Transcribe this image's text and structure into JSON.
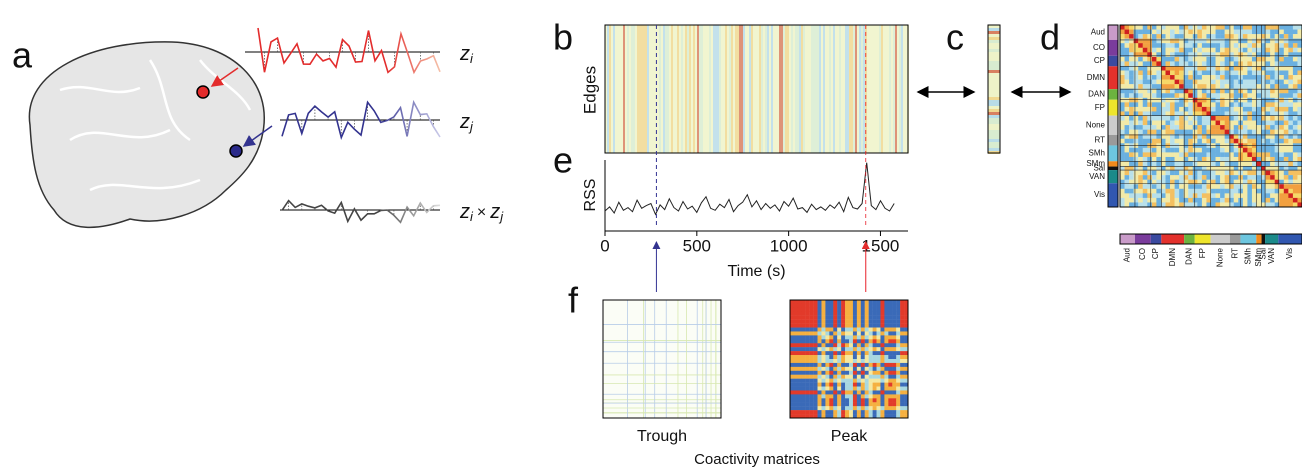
{
  "panel_labels": [
    "a",
    "b",
    "c",
    "d",
    "e",
    "f"
  ],
  "panel_a": {
    "signals": [
      {
        "symbol": "z",
        "subscript": "i"
      },
      {
        "symbol": "z",
        "subscript": "j"
      }
    ],
    "operator": "×"
  },
  "panel_b": {
    "ylabel": "Edges"
  },
  "rss_chart": {
    "type": "line",
    "ylabel": "RSS",
    "xlabel": "Time (s)",
    "color": "#222",
    "xlim": [
      0,
      1650
    ],
    "xticks": [
      0,
      500,
      1000,
      1500
    ],
    "ylim": [
      0,
      10
    ],
    "x": [
      0,
      25,
      50,
      75,
      100,
      125,
      150,
      175,
      200,
      225,
      250,
      275,
      300,
      325,
      350,
      375,
      400,
      425,
      450,
      475,
      500,
      525,
      550,
      575,
      600,
      625,
      650,
      675,
      700,
      725,
      750,
      775,
      800,
      825,
      850,
      875,
      900,
      925,
      950,
      975,
      1000,
      1025,
      1050,
      1075,
      1100,
      1125,
      1150,
      1175,
      1200,
      1225,
      1250,
      1275,
      1300,
      1325,
      1350,
      1375,
      1400,
      1425,
      1450,
      1475,
      1500,
      1525,
      1550,
      1575
    ],
    "values": [
      2.5,
      3.1,
      2.2,
      3.8,
      2.6,
      3.0,
      2.4,
      4.1,
      2.9,
      3.3,
      3.6,
      2.0,
      3.4,
      2.7,
      4.3,
      3.0,
      2.5,
      3.9,
      2.8,
      3.2,
      2.3,
      3.7,
      4.6,
      2.9,
      2.6,
      3.5,
      3.0,
      4.2,
      2.4,
      3.3,
      3.8,
      4.9,
      3.1,
      4.0,
      2.7,
      3.6,
      2.9,
      3.4,
      2.5,
      3.9,
      3.2,
      4.4,
      2.8,
      3.0,
      2.3,
      3.5,
      2.7,
      3.1,
      2.6,
      3.4,
      2.9,
      3.8,
      2.4,
      4.5,
      3.0,
      2.8,
      3.6,
      9.6,
      3.3,
      2.7,
      4.0,
      2.9,
      2.5,
      3.6
    ],
    "trough_x": 280,
    "peak_x": 1420
  },
  "panel_f": {
    "matrices": [
      {
        "label": "Trough",
        "color": "#343494"
      },
      {
        "label": "Peak",
        "color": "#e8202a"
      }
    ],
    "caption": "Coactivity matrices"
  },
  "panel_d": {
    "networks": [
      {
        "name": "Aud",
        "color": "#c99bc9"
      },
      {
        "name": "CO",
        "color": "#7a3c9c"
      },
      {
        "name": "CP",
        "color": "#3b4aa0"
      },
      {
        "name": "DMN",
        "color": "#e3312c"
      },
      {
        "name": "DAN",
        "color": "#6cb33f"
      },
      {
        "name": "FP",
        "color": "#eee52c"
      },
      {
        "name": "None",
        "color": "#cccccc"
      },
      {
        "name": "RT",
        "color": "#9a9a9a"
      },
      {
        "name": "SMh",
        "color": "#6dc6df"
      },
      {
        "name": "SMm",
        "color": "#f08a1c"
      },
      {
        "name": "Sal",
        "color": "#111111"
      },
      {
        "name": "VAN",
        "color": "#1b8a8a"
      },
      {
        "name": "Vis",
        "color": "#3157b0"
      }
    ]
  }
}
